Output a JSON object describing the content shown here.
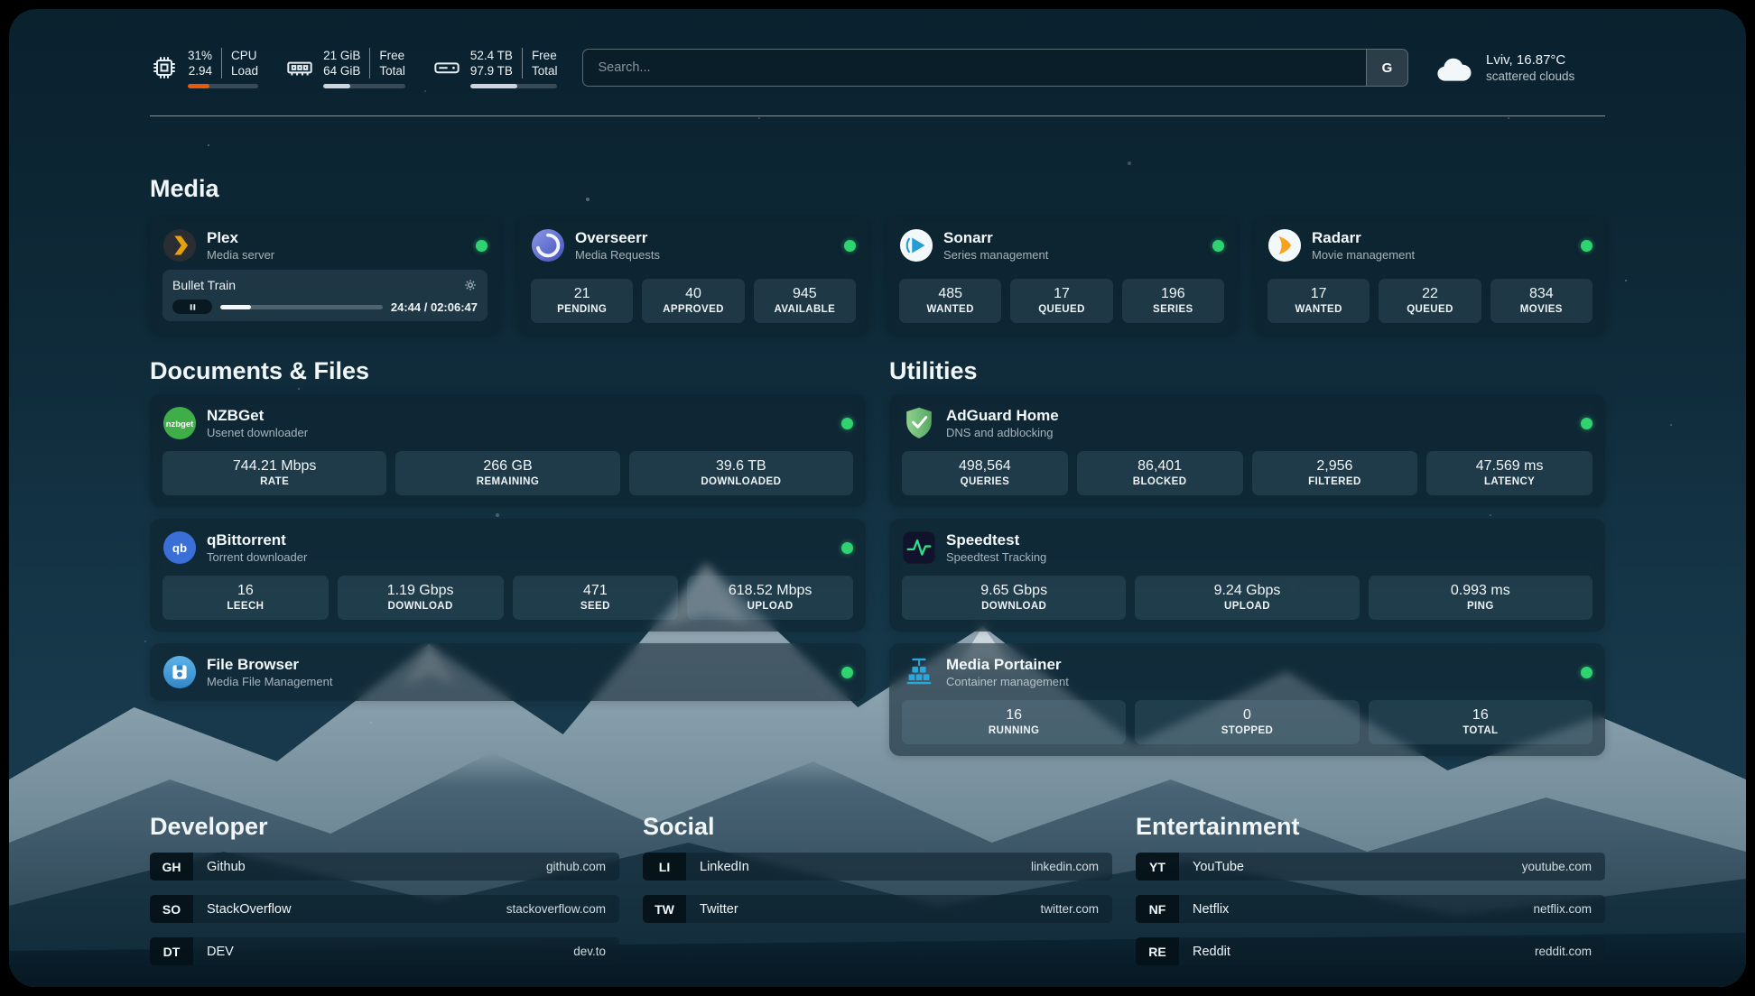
{
  "colors": {
    "status_ok": "#2fd36f",
    "cpu_bar": "#e8590c",
    "progress_track": "#ffffff2e",
    "accent_sky": "#143546"
  },
  "topbar": {
    "cpu": {
      "values": [
        "31%",
        "2.94"
      ],
      "labels": [
        "CPU",
        "Load"
      ],
      "progress_pct": 31
    },
    "memory": {
      "values": [
        "21 GiB",
        "64 GiB"
      ],
      "labels": [
        "Free",
        "Total"
      ],
      "progress_pct": 33
    },
    "disk": {
      "values": [
        "52.4 TB",
        "97.9 TB"
      ],
      "labels": [
        "Free",
        "Total"
      ],
      "progress_pct": 54
    },
    "search": {
      "placeholder": "Search...",
      "engine_button": "G"
    },
    "weather": {
      "icon": "cloud-icon",
      "location_temp": "Lviv, 16.87°C",
      "condition": "scattered clouds"
    }
  },
  "sections": {
    "media": {
      "title": "Media"
    },
    "documents": {
      "title": "Documents & Files"
    },
    "utilities": {
      "title": "Utilities"
    },
    "developer": {
      "title": "Developer"
    },
    "social": {
      "title": "Social"
    },
    "entertainment": {
      "title": "Entertainment"
    }
  },
  "apps": {
    "plex": {
      "name": "Plex",
      "subtitle": "Media server",
      "icon": "plex-logo",
      "status": "online",
      "player": {
        "title": "Bullet Train",
        "time": "24:44 / 02:06:47",
        "progress_pct": 19
      }
    },
    "overseerr": {
      "name": "Overseerr",
      "subtitle": "Media Requests",
      "icon": "overseerr-logo",
      "status": "online",
      "stats": [
        {
          "value": "21",
          "label": "PENDING"
        },
        {
          "value": "40",
          "label": "APPROVED"
        },
        {
          "value": "945",
          "label": "AVAILABLE"
        }
      ]
    },
    "sonarr": {
      "name": "Sonarr",
      "subtitle": "Series management",
      "icon": "sonarr-logo",
      "status": "online",
      "stats": [
        {
          "value": "485",
          "label": "WANTED"
        },
        {
          "value": "17",
          "label": "QUEUED"
        },
        {
          "value": "196",
          "label": "SERIES"
        }
      ]
    },
    "radarr": {
      "name": "Radarr",
      "subtitle": "Movie management",
      "icon": "radarr-logo",
      "status": "online",
      "stats": [
        {
          "value": "17",
          "label": "WANTED"
        },
        {
          "value": "22",
          "label": "QUEUED"
        },
        {
          "value": "834",
          "label": "MOVIES"
        }
      ]
    },
    "nzbget": {
      "name": "NZBGet",
      "subtitle": "Usenet downloader",
      "icon": "nzbget-logo",
      "icon_text": "nzbget",
      "status": "online",
      "stats": [
        {
          "value": "744.21 Mbps",
          "label": "RATE"
        },
        {
          "value": "266 GB",
          "label": "REMAINING"
        },
        {
          "value": "39.6 TB",
          "label": "DOWNLOADED"
        }
      ]
    },
    "qbittorrent": {
      "name": "qBittorrent",
      "subtitle": "Torrent downloader",
      "icon": "qbittorrent-logo",
      "icon_text": "qb",
      "status": "online",
      "stats": [
        {
          "value": "16",
          "label": "LEECH"
        },
        {
          "value": "1.19 Gbps",
          "label": "DOWNLOAD"
        },
        {
          "value": "471",
          "label": "SEED"
        },
        {
          "value": "618.52 Mbps",
          "label": "UPLOAD"
        }
      ]
    },
    "filebrowser": {
      "name": "File Browser",
      "subtitle": "Media File Management",
      "icon": "filebrowser-logo",
      "status": "online",
      "stats": []
    },
    "adguard": {
      "name": "AdGuard Home",
      "subtitle": "DNS and adblocking",
      "icon": "adguard-shield-logo",
      "status": "online",
      "stats": [
        {
          "value": "498,564",
          "label": "QUERIES"
        },
        {
          "value": "86,401",
          "label": "BLOCKED"
        },
        {
          "value": "2,956",
          "label": "FILTERED"
        },
        {
          "value": "47.569 ms",
          "label": "LATENCY"
        }
      ]
    },
    "speedtest": {
      "name": "Speedtest",
      "subtitle": "Speedtest Tracking",
      "icon": "speedtest-pulse-logo",
      "status": "online",
      "stats": [
        {
          "value": "9.65 Gbps",
          "label": "DOWNLOAD"
        },
        {
          "value": "9.24 Gbps",
          "label": "UPLOAD"
        },
        {
          "value": "0.993 ms",
          "label": "PING"
        }
      ]
    },
    "portainer": {
      "name": "Media Portainer",
      "subtitle": "Container management",
      "icon": "portainer-crane-logo",
      "status": "online",
      "stats": [
        {
          "value": "16",
          "label": "RUNNING"
        },
        {
          "value": "0",
          "label": "STOPPED"
        },
        {
          "value": "16",
          "label": "TOTAL"
        }
      ]
    }
  },
  "links": {
    "developer": [
      {
        "abbr": "GH",
        "name": "Github",
        "url": "github.com"
      },
      {
        "abbr": "SO",
        "name": "StackOverflow",
        "url": "stackoverflow.com"
      },
      {
        "abbr": "DT",
        "name": "DEV",
        "url": "dev.to"
      }
    ],
    "social": [
      {
        "abbr": "LI",
        "name": "LinkedIn",
        "url": "linkedin.com"
      },
      {
        "abbr": "TW",
        "name": "Twitter",
        "url": "twitter.com"
      }
    ],
    "entertainment": [
      {
        "abbr": "YT",
        "name": "YouTube",
        "url": "youtube.com"
      },
      {
        "abbr": "NF",
        "name": "Netflix",
        "url": "netflix.com"
      },
      {
        "abbr": "RE",
        "name": "Reddit",
        "url": "reddit.com"
      }
    ]
  }
}
